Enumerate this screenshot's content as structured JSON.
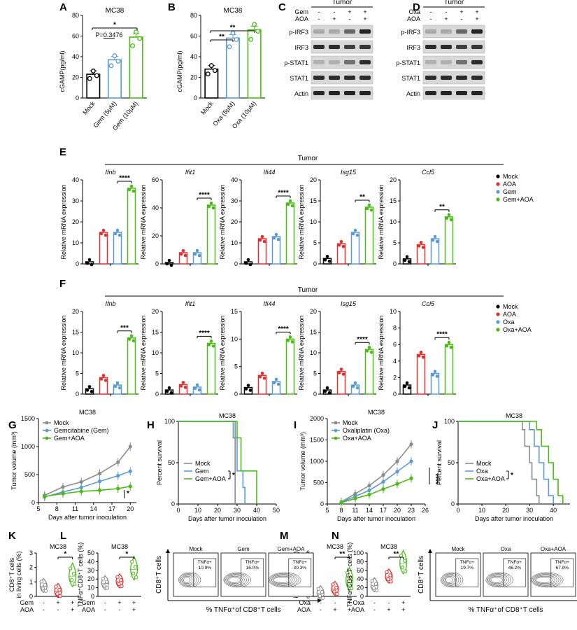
{
  "panel_letters": [
    "A",
    "B",
    "C",
    "D",
    "E",
    "F",
    "G",
    "H",
    "I",
    "J",
    "K",
    "L",
    "M",
    "N"
  ],
  "colors": {
    "mock": "#000000",
    "aoa": "#e03030",
    "gem": "#5b9bd5",
    "combo": "#4cbb17",
    "grey": "#8c8c8c",
    "blot": "#1a1a1a"
  },
  "labels": {
    "mc38": "MC38",
    "tumor": "Tumor",
    "cgamp_ylabel": "cGAMP(pg/ml)",
    "rel_ylabel": "Relative mRNA expression",
    "tv_ylabel": "Tumor volume (mm³)",
    "surv_ylabel": "Percent survival",
    "days_xlabel": "Days after tumor inoculation",
    "k_ylabel1": "CD8⁺T cells",
    "k_ylabel2": "in living cells (%)",
    "l_ylabel": "TNFα⁺CD8⁺T cells (%)",
    "flow_y": "CD8⁺T cells",
    "flow_x": "% TNFα⁺of CD8⁺T cells",
    "tnfa": "TNFα+"
  },
  "panel_a": {
    "title": "MC38",
    "categories": [
      "Mock",
      "Gem (5μM)",
      "Gem (10μM)"
    ],
    "values": [
      23,
      37,
      59
    ],
    "ylim": [
      0,
      80
    ],
    "ticks": [
      0,
      20,
      40,
      60,
      80
    ],
    "sig_top": "*",
    "sig_p": "P=0.3476"
  },
  "panel_b": {
    "title": "MC38",
    "categories": [
      "Mock",
      "Oxa (5μM)",
      "Oxa (10μM)"
    ],
    "values": [
      28,
      58,
      66
    ],
    "ylim": [
      0,
      80
    ],
    "ticks": [
      0,
      20,
      40,
      60,
      80
    ],
    "sig_top": "**",
    "sig_mid": "**"
  },
  "blot_c": {
    "rows": [
      "Gem",
      "AOA"
    ],
    "signs": [
      [
        "-",
        "-",
        "+",
        "+"
      ],
      [
        "-",
        "+",
        "-",
        "+"
      ]
    ],
    "bands": [
      "p-IRF3",
      "IRF3",
      "p-STAT1",
      "STAT1",
      "Actin"
    ]
  },
  "blot_d": {
    "rows": [
      "Oxa",
      "AOA"
    ],
    "signs": [
      [
        "-",
        "-",
        "+",
        "+"
      ],
      [
        "-",
        "+",
        "-",
        "+"
      ]
    ],
    "bands": [
      "p-IRF3",
      "IRF3",
      "p-STAT1",
      "STAT1",
      "Actin"
    ]
  },
  "panel_e": {
    "legend": [
      "Mock",
      "AOA",
      "Gem",
      "Gem+AOA"
    ],
    "genes": [
      {
        "name": "Ifnb",
        "ticks": [
          0,
          10,
          20,
          30,
          40
        ],
        "ymax": 40,
        "values": [
          1,
          15,
          15,
          36
        ],
        "sig": "****"
      },
      {
        "name": "Ifit1",
        "ticks": [
          0,
          20,
          40,
          60
        ],
        "ymax": 60,
        "values": [
          1,
          8,
          8,
          42
        ],
        "sig": "****"
      },
      {
        "name": "Ifi44",
        "ticks": [
          0,
          10,
          20,
          30,
          40
        ],
        "ymax": 40,
        "values": [
          1,
          12,
          13,
          29
        ],
        "sig": "****"
      },
      {
        "name": "Isg15",
        "ticks": [
          0,
          5,
          10,
          15,
          20
        ],
        "ymax": 20,
        "values": [
          1.3,
          4.8,
          7.5,
          13.5
        ],
        "sig": "**"
      },
      {
        "name": "Ccl5",
        "ticks": [
          0,
          5,
          10,
          15,
          20
        ],
        "ymax": 20,
        "values": [
          1.2,
          4.6,
          6,
          11.2
        ],
        "sig": "**"
      }
    ]
  },
  "panel_f": {
    "legend": [
      "Mock",
      "AOA",
      "Oxa",
      "Oxa+AOA"
    ],
    "genes": [
      {
        "name": "Ifnb",
        "ticks": [
          0,
          5,
          10,
          15,
          20
        ],
        "ymax": 20,
        "values": [
          1.3,
          4,
          2.2,
          13.6
        ],
        "sig": "***"
      },
      {
        "name": "Ifit1",
        "ticks": [
          0,
          5,
          10,
          15,
          20
        ],
        "ymax": 20,
        "values": [
          1,
          2.3,
          1.7,
          12.3
        ],
        "sig": "****"
      },
      {
        "name": "Ifi44",
        "ticks": [
          0,
          5,
          10,
          15
        ],
        "ymax": 15,
        "values": [
          1.2,
          3.4,
          2.3,
          10
        ],
        "sig": "****"
      },
      {
        "name": "Isg15",
        "ticks": [
          0,
          5,
          10,
          15,
          20
        ],
        "ymax": 20,
        "values": [
          1,
          5.5,
          2.2,
          10.8
        ],
        "sig": "****"
      },
      {
        "name": "Ccl5",
        "ticks": [
          0,
          2,
          4,
          6,
          8,
          10
        ],
        "ymax": 10,
        "values": [
          1.1,
          4.8,
          2.5,
          6
        ],
        "sig": "****"
      }
    ]
  },
  "panel_g": {
    "title": "MC38",
    "x": [
      6,
      9,
      12,
      15,
      18,
      20
    ],
    "xticks": [
      5,
      8,
      11,
      14,
      17,
      20
    ],
    "xlim": [
      5,
      21
    ],
    "ylim": [
      0,
      1500
    ],
    "yticks": [
      0,
      500,
      1000,
      1500
    ],
    "series": [
      {
        "name": "Mock",
        "values": [
          130,
          280,
          370,
          520,
          720,
          1000
        ]
      },
      {
        "name": "Gemcitabine (Gem)",
        "values": [
          100,
          190,
          270,
          380,
          480,
          560
        ]
      },
      {
        "name": "Gem+AOA",
        "values": [
          110,
          160,
          200,
          220,
          250,
          290
        ]
      }
    ],
    "sig": [
      "*",
      "*"
    ]
  },
  "panel_h": {
    "title": "MC38",
    "xticks": [
      0,
      10,
      20,
      30,
      40,
      50
    ],
    "yticks": [
      0,
      50,
      100
    ],
    "series": [
      {
        "name": "Mock",
        "steps": [
          [
            0,
            100
          ],
          [
            28,
            100
          ],
          [
            28,
            80
          ],
          [
            29,
            80
          ],
          [
            29,
            0
          ]
        ]
      },
      {
        "name": "Gem",
        "steps": [
          [
            0,
            100
          ],
          [
            29,
            100
          ],
          [
            29,
            80
          ],
          [
            30,
            80
          ],
          [
            30,
            40
          ],
          [
            33,
            40
          ],
          [
            33,
            20
          ],
          [
            34,
            20
          ],
          [
            34,
            0
          ]
        ]
      },
      {
        "name": "Gem+AOA",
        "steps": [
          [
            0,
            100
          ],
          [
            30,
            100
          ],
          [
            30,
            80
          ],
          [
            32,
            80
          ],
          [
            32,
            40
          ],
          [
            40,
            40
          ],
          [
            40,
            0
          ]
        ]
      }
    ],
    "sig": "*"
  },
  "panel_i": {
    "title": "MC38",
    "x": [
      8,
      11,
      14,
      17,
      20,
      23
    ],
    "xticks": [
      5,
      8,
      11,
      14,
      17,
      20,
      23,
      26
    ],
    "xlim": [
      5,
      26
    ],
    "ylim": [
      0,
      2000
    ],
    "yticks": [
      0,
      500,
      1000,
      1500,
      2000
    ],
    "series": [
      {
        "name": "Mock",
        "values": [
          50,
          240,
          430,
          680,
          1000,
          1400
        ]
      },
      {
        "name": "Oxaliplatin (Oxa)",
        "values": [
          40,
          180,
          320,
          520,
          760,
          1000
        ]
      },
      {
        "name": "Oxa+AOA",
        "values": [
          30,
          130,
          220,
          350,
          470,
          600
        ]
      }
    ],
    "sig": "****"
  },
  "panel_j": {
    "title": "MC38",
    "xticks": [
      0,
      10,
      20,
      30,
      40
    ],
    "yticks": [
      0,
      50,
      100
    ],
    "series": [
      {
        "name": "Mock",
        "steps": [
          [
            0,
            100
          ],
          [
            27,
            100
          ],
          [
            27,
            90
          ],
          [
            28,
            90
          ],
          [
            28,
            70
          ],
          [
            30,
            70
          ],
          [
            30,
            50
          ],
          [
            31,
            50
          ],
          [
            31,
            30
          ],
          [
            33,
            30
          ],
          [
            33,
            10
          ],
          [
            34,
            10
          ],
          [
            34,
            0
          ]
        ]
      },
      {
        "name": "Oxa",
        "steps": [
          [
            0,
            100
          ],
          [
            30,
            100
          ],
          [
            30,
            90
          ],
          [
            32,
            90
          ],
          [
            32,
            70
          ],
          [
            34,
            70
          ],
          [
            34,
            50
          ],
          [
            36,
            50
          ],
          [
            36,
            30
          ],
          [
            38,
            30
          ],
          [
            38,
            10
          ],
          [
            40,
            10
          ],
          [
            40,
            0
          ]
        ]
      },
      {
        "name": "Oxa+AOA",
        "steps": [
          [
            0,
            100
          ],
          [
            33,
            100
          ],
          [
            33,
            90
          ],
          [
            35,
            90
          ],
          [
            35,
            70
          ],
          [
            38,
            70
          ],
          [
            38,
            50
          ],
          [
            40,
            50
          ],
          [
            40,
            30
          ],
          [
            42,
            30
          ],
          [
            42,
            10
          ],
          [
            44,
            10
          ],
          [
            44,
            0
          ]
        ]
      }
    ],
    "sig": "*"
  },
  "panel_k": {
    "title": "MC38",
    "ylim": [
      0,
      3
    ],
    "yticks": [
      0,
      1,
      2,
      3
    ],
    "values": [
      0.7,
      0.35,
      1.4
    ],
    "sig": "*",
    "rows": [
      "Gem",
      "AOA"
    ],
    "signs": [
      [
        "-",
        "+",
        "+"
      ],
      [
        "-",
        "-",
        "+"
      ]
    ]
  },
  "panel_l": {
    "title": "MC38",
    "ylim": [
      0,
      50
    ],
    "yticks": [
      0,
      10,
      20,
      30,
      40,
      50
    ],
    "values": [
      15,
      17,
      31
    ],
    "sig": "*",
    "rows": [
      "Gem",
      "AOA"
    ],
    "signs": [
      [
        "-",
        "+",
        "+"
      ],
      [
        "-",
        "-",
        "+"
      ]
    ]
  },
  "panel_m": {
    "title": "MC38",
    "ylim": [
      0,
      6
    ],
    "yticks": [
      0,
      2,
      4,
      6
    ],
    "values": [
      0.4,
      1.0,
      2.2
    ],
    "sig": "**",
    "rows": [
      "Oxa",
      "AOA"
    ],
    "signs": [
      [
        "-",
        "-",
        "+"
      ],
      [
        "-",
        "+",
        "+"
      ]
    ]
  },
  "panel_n": {
    "title": "MC38",
    "ylim": [
      0,
      100
    ],
    "yticks": [
      0,
      20,
      40,
      60,
      80,
      100
    ],
    "values": [
      25,
      45,
      76
    ],
    "sig": "**",
    "rows": [
      "Oxa",
      "AOA"
    ],
    "signs": [
      [
        "-",
        "-",
        "+"
      ],
      [
        "-",
        "+",
        "+"
      ]
    ]
  },
  "flow_l": {
    "groups": [
      "Mock",
      "Gem",
      "Gem+AOA"
    ],
    "pcts": [
      "10.9%",
      "15.0%",
      "30.3%"
    ]
  },
  "flow_n": {
    "groups": [
      "Mock",
      "Oxa",
      "Oxa+AOA"
    ],
    "pcts": [
      "19.7%",
      "46.2%",
      "67.9%"
    ]
  }
}
